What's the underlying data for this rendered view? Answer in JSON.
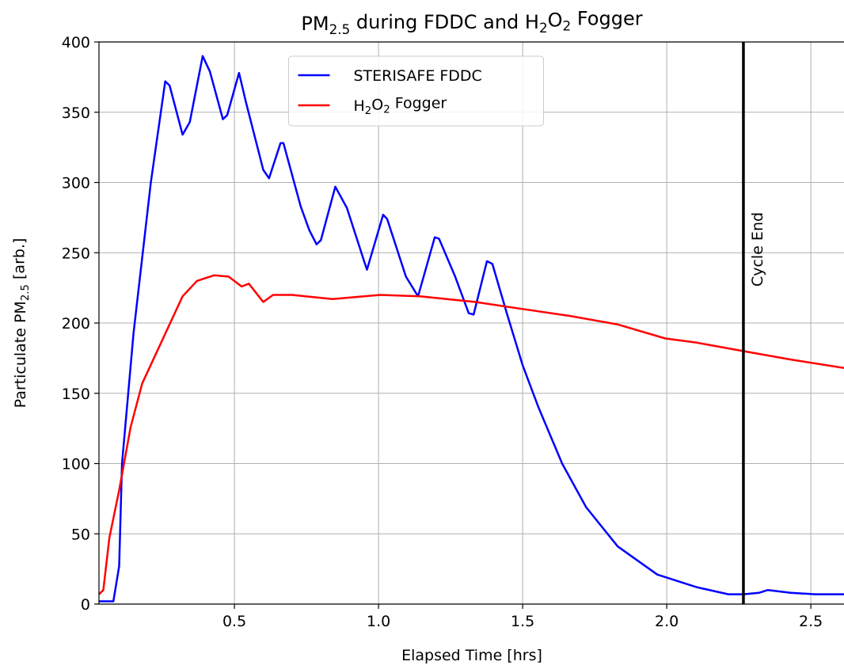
{
  "chart_data": {
    "type": "line",
    "title": "PM2.5 during FDDC and H2O2 Fogger",
    "x_label": "Elapsed Time [hrs]",
    "y_label": "Particulate PM2.5 [arb.]",
    "xlim": [
      0.03,
      2.615
    ],
    "ylim": [
      0,
      400
    ],
    "xticks": [
      0.5,
      {
        "value": 1,
        "label": "1.0"
      },
      1.5,
      {
        "value": 2,
        "label": "2.0"
      },
      2.5
    ],
    "yticks": [
      0,
      50,
      100,
      150,
      200,
      250,
      300,
      350,
      400
    ],
    "grid": true,
    "legend": "upper center",
    "annotations": [
      {
        "x": 2.266,
        "text": "Cycle End",
        "color": "#000000"
      }
    ],
    "series": [
      {
        "name": "STERISAFE FDDC",
        "color": "#0000ff",
        "x": [
          0.03,
          0.08,
          0.1,
          0.11,
          0.15,
          0.21,
          0.26,
          0.275,
          0.32,
          0.345,
          0.39,
          0.415,
          0.46,
          0.475,
          0.516,
          0.54,
          0.6,
          0.62,
          0.66,
          0.67,
          0.73,
          0.76,
          0.785,
          0.8,
          0.85,
          0.89,
          0.95,
          0.96,
          1.016,
          1.03,
          1.095,
          1.137,
          1.195,
          1.21,
          1.266,
          1.313,
          1.33,
          1.376,
          1.395,
          1.445,
          1.5,
          1.555,
          1.637,
          1.72,
          1.83,
          1.967,
          2.104,
          2.214,
          2.266,
          2.32,
          2.35,
          2.43,
          2.515,
          2.615
        ],
        "values": [
          2,
          2,
          27,
          100,
          193,
          300,
          372,
          369,
          334,
          343,
          390,
          379,
          345,
          348,
          378,
          357,
          309,
          303,
          328,
          328,
          283,
          266,
          256,
          259,
          297,
          282,
          244,
          238,
          277,
          274,
          233,
          219,
          261,
          260,
          233,
          207,
          206,
          244,
          242,
          207,
          170,
          140,
          100,
          69,
          41,
          21,
          12,
          7,
          7,
          8,
          10,
          8,
          7,
          7
        ]
      },
      {
        "name": "H2O2 Fogger",
        "color": "#ff0000",
        "x": [
          0.03,
          0.045,
          0.066,
          0.1,
          0.14,
          0.18,
          0.25,
          0.32,
          0.37,
          0.43,
          0.48,
          0.525,
          0.55,
          0.6,
          0.634,
          0.7,
          0.84,
          1.005,
          1.143,
          1.335,
          1.5,
          1.665,
          1.83,
          1.995,
          2.104,
          2.266,
          2.43,
          2.615
        ],
        "values": [
          7,
          10,
          47,
          81,
          126,
          157,
          188,
          219,
          230,
          234,
          233,
          226,
          228,
          215,
          220,
          220,
          217,
          220,
          219,
          215,
          210,
          205,
          199,
          189,
          186,
          180,
          174,
          168
        ]
      }
    ]
  }
}
